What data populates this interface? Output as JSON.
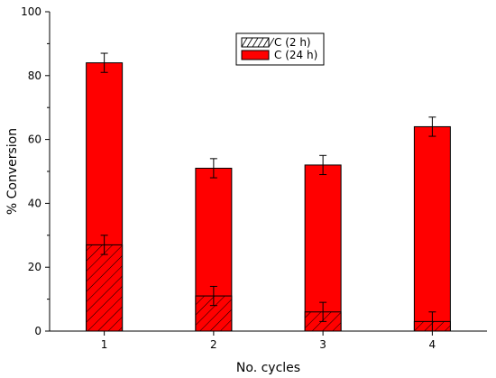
{
  "chart_data": {
    "type": "bar",
    "xlabel": "No. cycles",
    "ylabel": "% Conversion",
    "categories": [
      "1",
      "2",
      "3",
      "4"
    ],
    "ylim": [
      0,
      100
    ],
    "yticks": [
      0,
      20,
      40,
      60,
      80,
      100
    ],
    "grid": false,
    "legend_position": "top-center",
    "series": [
      {
        "name": "C (24 h)",
        "values": [
          84,
          51,
          52,
          64
        ],
        "errors": [
          3,
          3,
          3,
          3
        ],
        "color": "#ff0000",
        "pattern": "solid"
      },
      {
        "name": "C (2 h)",
        "values": [
          27,
          11,
          6,
          3
        ],
        "errors": [
          3,
          3,
          3,
          3
        ],
        "color": "#ff0000",
        "pattern": "hatched"
      }
    ]
  }
}
